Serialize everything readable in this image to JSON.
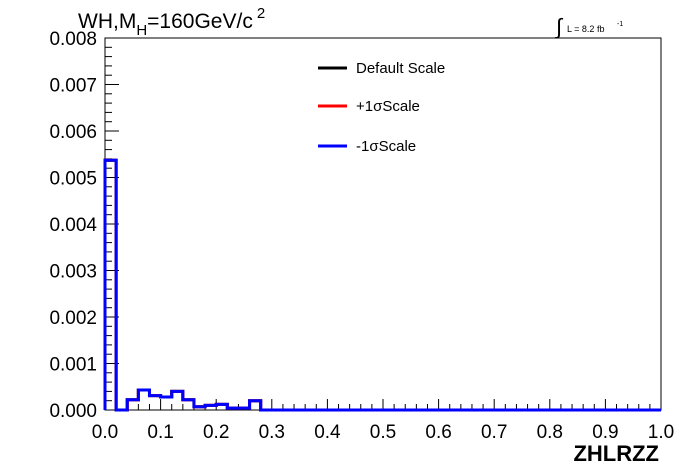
{
  "chart_data": {
    "type": "line",
    "title_main": "WH,M",
    "title_sub": "H",
    "title_rest": "=160GeV/c",
    "title_sup": "2",
    "lumi": {
      "integral": "∫",
      "text": "L = 8.2 fb",
      "sup": "-1"
    },
    "xlabel": "ZHLRZZ",
    "xlim": [
      0.0,
      1.0
    ],
    "ylim": [
      0.0,
      0.008
    ],
    "x_ticks": [
      "0.0",
      "0.1",
      "0.2",
      "0.3",
      "0.4",
      "0.5",
      "0.6",
      "0.7",
      "0.8",
      "0.9",
      "1.0"
    ],
    "y_ticks": [
      "0.000",
      "0.001",
      "0.002",
      "0.003",
      "0.004",
      "0.005",
      "0.006",
      "0.007",
      "0.008"
    ],
    "bin_width": 0.02,
    "series": [
      {
        "name": "Default Scale",
        "color": "#000000",
        "values": [
          0.00537,
          0.0,
          0.00022,
          0.00043,
          0.00031,
          0.00028,
          0.0004,
          0.00022,
          7e-05,
          0.0001,
          0.00012,
          4e-05,
          4e-05,
          0.0002,
          0.0,
          0.0,
          0.0,
          0.0,
          0.0,
          0.0,
          0.0,
          0.0,
          0.0,
          0.0,
          0.0,
          0.0,
          0.0,
          0.0,
          0.0,
          0.0,
          0.0,
          0.0,
          0.0,
          0.0,
          0.0,
          0.0,
          0.0,
          0.0,
          0.0,
          0.0,
          0.0,
          0.0,
          0.0,
          0.0,
          0.0,
          0.0,
          0.0,
          0.0,
          0.0,
          0.0
        ]
      },
      {
        "name": "+1σScale",
        "color": "#ff0000",
        "values": [
          0.00537,
          0.0,
          0.00022,
          0.00043,
          0.00031,
          0.00028,
          0.0004,
          0.00022,
          7e-05,
          0.0001,
          0.00012,
          4e-05,
          4e-05,
          0.0002,
          0.0,
          0.0,
          0.0,
          0.0,
          0.0,
          0.0,
          0.0,
          0.0,
          0.0,
          0.0,
          0.0,
          0.0,
          0.0,
          0.0,
          0.0,
          0.0,
          0.0,
          0.0,
          0.0,
          0.0,
          0.0,
          0.0,
          0.0,
          0.0,
          0.0,
          0.0,
          0.0,
          0.0,
          0.0,
          0.0,
          0.0,
          0.0,
          0.0,
          0.0,
          0.0,
          0.0
        ]
      },
      {
        "name": "-1σScale",
        "color": "#0000ff",
        "values": [
          0.00537,
          0.0,
          0.00022,
          0.00043,
          0.00031,
          0.00028,
          0.0004,
          0.00022,
          7e-05,
          0.0001,
          0.00012,
          4e-05,
          4e-05,
          0.0002,
          0.0,
          0.0,
          0.0,
          0.0,
          0.0,
          0.0,
          0.0,
          0.0,
          0.0,
          0.0,
          0.0,
          0.0,
          0.0,
          0.0,
          0.0,
          0.0,
          0.0,
          0.0,
          0.0,
          0.0,
          0.0,
          0.0,
          0.0,
          0.0,
          0.0,
          0.0,
          0.0,
          0.0,
          0.0,
          0.0,
          0.0,
          0.0,
          0.0,
          0.0,
          0.0,
          0.0
        ]
      }
    ],
    "legend_placement": "top-center"
  }
}
